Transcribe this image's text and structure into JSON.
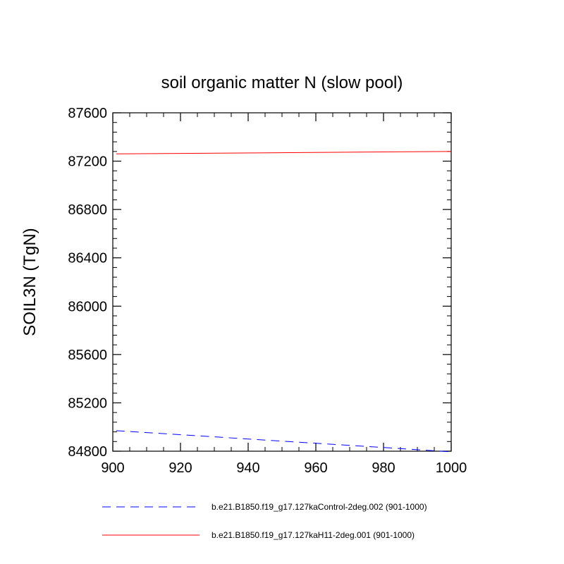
{
  "chart_data": {
    "type": "line",
    "title": "soil organic matter N (slow pool)",
    "xlabel": "",
    "ylabel": "SOIL3N  (TgN)",
    "xlim": [
      900,
      1000
    ],
    "ylim": [
      84800,
      87600
    ],
    "x_ticks": [
      900,
      920,
      940,
      960,
      980,
      1000
    ],
    "y_ticks": [
      84800,
      85200,
      85600,
      86000,
      86400,
      86800,
      87200,
      87600
    ],
    "grid": false,
    "legend_position": "bottom",
    "series": [
      {
        "name": "b.e21.B1850.f19_g17.127kaControl-2deg.002 (901-1000)",
        "color": "#0000ff",
        "style": "dashed",
        "x": [
          901,
          1000
        ],
        "y": [
          84970,
          84795
        ]
      },
      {
        "name": "b.e21.B1850.f19_g17.127kaH11-2deg.001 (901-1000)",
        "color": "#ff0000",
        "style": "solid",
        "x": [
          901,
          1000
        ],
        "y": [
          87260,
          87280
        ]
      }
    ]
  }
}
